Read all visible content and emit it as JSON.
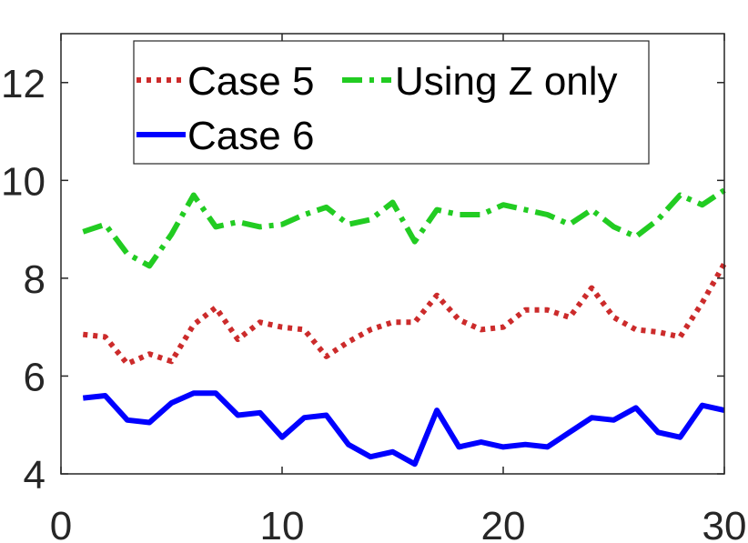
{
  "chart_data": {
    "type": "line",
    "title": "",
    "xlabel": "",
    "ylabel": "",
    "xlim": [
      0,
      30
    ],
    "ylim": [
      4,
      13
    ],
    "xticks": [
      "0",
      "10",
      "20",
      "30"
    ],
    "yticks": [
      "4",
      "6",
      "8",
      "10",
      "12"
    ],
    "grid": false,
    "legend_position": "top",
    "x": [
      1,
      2,
      3,
      4,
      5,
      6,
      7,
      8,
      9,
      10,
      11,
      12,
      13,
      14,
      15,
      16,
      17,
      18,
      19,
      20,
      21,
      22,
      23,
      24,
      25,
      26,
      27,
      28,
      29,
      30
    ],
    "series": [
      {
        "name": "Case 5",
        "color": "#cc2b2b",
        "style": "dotted",
        "values": [
          6.85,
          6.8,
          6.25,
          6.45,
          6.3,
          7.05,
          7.4,
          6.75,
          7.1,
          7.0,
          6.95,
          6.4,
          6.7,
          6.95,
          7.1,
          7.1,
          7.65,
          7.15,
          6.95,
          7.0,
          7.35,
          7.35,
          7.2,
          7.8,
          7.2,
          6.95,
          6.9,
          6.8,
          7.5,
          8.3
        ]
      },
      {
        "name": "Using Z only",
        "color": "#22cc22",
        "style": "dashdot",
        "values": [
          8.95,
          9.1,
          8.5,
          8.25,
          8.9,
          9.7,
          9.05,
          9.15,
          9.05,
          9.1,
          9.3,
          9.45,
          9.1,
          9.2,
          9.55,
          8.75,
          9.4,
          9.3,
          9.3,
          9.5,
          9.4,
          9.3,
          9.1,
          9.4,
          9.05,
          8.85,
          9.2,
          9.7,
          9.5,
          9.8
        ]
      },
      {
        "name": "Case 6",
        "color": "#0000ff",
        "style": "solid",
        "values": [
          5.55,
          5.6,
          5.1,
          5.05,
          5.45,
          5.65,
          5.65,
          5.2,
          5.25,
          4.75,
          5.15,
          5.2,
          4.6,
          4.35,
          4.45,
          4.2,
          5.3,
          4.55,
          4.65,
          4.55,
          4.6,
          4.55,
          4.85,
          5.15,
          5.1,
          5.35,
          4.85,
          4.75,
          5.4,
          5.3
        ]
      }
    ]
  }
}
